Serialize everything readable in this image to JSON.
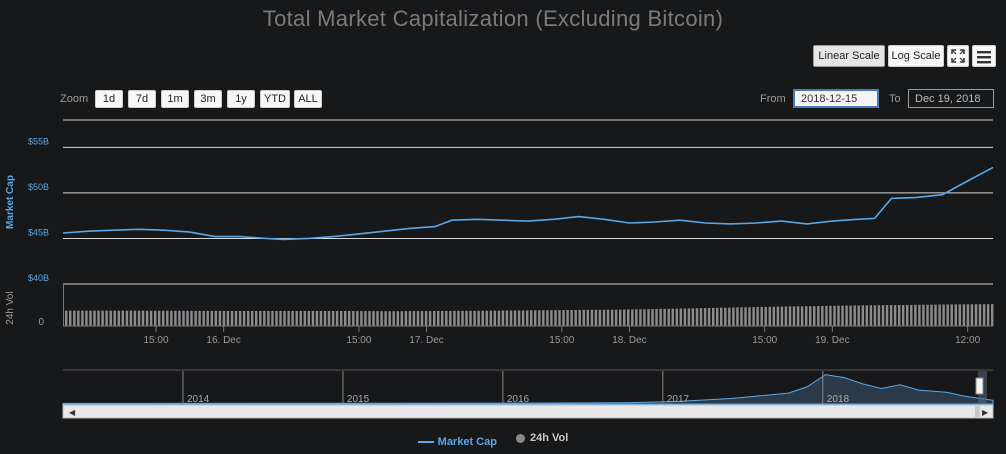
{
  "title": "Total Market Capitalization (Excluding Bitcoin)",
  "toolbar": {
    "linear_scale": "Linear Scale",
    "log_scale": "Log Scale",
    "fullscreen_icon": "fullscreen-icon",
    "menu_icon": "hamburger-menu-icon"
  },
  "zoom": {
    "label": "Zoom",
    "buttons": [
      "1d",
      "7d",
      "1m",
      "3m",
      "1y",
      "YTD",
      "ALL"
    ]
  },
  "range": {
    "from_label": "From",
    "from_value": "2018-12-15",
    "to_label": "To",
    "to_value": "Dec 19, 2018"
  },
  "colors": {
    "line": "#5aa7e8",
    "volume": "#8c8c8c",
    "background": "#17181a",
    "grid": "#d8d8d8"
  },
  "legend": {
    "market_cap": "Market Cap",
    "volume": "24h Vol"
  },
  "chart_data": {
    "type": "line",
    "y_axis_title": "Market Cap",
    "y_ticks": [
      "$40B",
      "$45B",
      "$50B",
      "$55B"
    ],
    "ylim": [
      40,
      58
    ],
    "volume_axis_title": "24h Vol",
    "volume_ticks": [
      "0"
    ],
    "x_ticks": [
      "15:00",
      "16. Dec",
      "15:00",
      "17. Dec",
      "15:00",
      "18. Dec",
      "15:00",
      "19. Dec",
      "12:00"
    ],
    "x_range_hours": [
      0,
      110
    ],
    "series": [
      {
        "name": "Market Cap",
        "unit": "$B",
        "points": [
          [
            0,
            45.6
          ],
          [
            3,
            45.8
          ],
          [
            6,
            45.9
          ],
          [
            9,
            46.0
          ],
          [
            12,
            45.9
          ],
          [
            15,
            45.7
          ],
          [
            18,
            45.2
          ],
          [
            21,
            45.2
          ],
          [
            24,
            45.0
          ],
          [
            26,
            44.9
          ],
          [
            29,
            45.0
          ],
          [
            32,
            45.2
          ],
          [
            35,
            45.5
          ],
          [
            38,
            45.8
          ],
          [
            41,
            46.1
          ],
          [
            44,
            46.3
          ],
          [
            46,
            47.0
          ],
          [
            49,
            47.1
          ],
          [
            52,
            47.0
          ],
          [
            55,
            46.9
          ],
          [
            58,
            47.1
          ],
          [
            61,
            47.4
          ],
          [
            64,
            47.1
          ],
          [
            67,
            46.7
          ],
          [
            70,
            46.8
          ],
          [
            73,
            47.0
          ],
          [
            76,
            46.7
          ],
          [
            79,
            46.6
          ],
          [
            82,
            46.7
          ],
          [
            85,
            46.9
          ],
          [
            88,
            46.6
          ],
          [
            91,
            46.9
          ],
          [
            94,
            47.1
          ],
          [
            96,
            47.2
          ],
          [
            98,
            49.4
          ],
          [
            101,
            49.5
          ],
          [
            104,
            49.8
          ],
          [
            107,
            51.3
          ],
          [
            110,
            52.8
          ]
        ]
      },
      {
        "name": "24h Vol",
        "unit": "relative",
        "values_note": "",
        "levels": [
          0.72,
          0.72,
          0.71,
          0.7,
          0.7,
          0.7,
          0.69,
          0.7,
          0.72,
          0.74,
          0.76,
          0.8,
          0.85,
          0.9,
          0.94,
          0.97,
          1.0,
          1.02
        ]
      }
    ]
  },
  "navigator": {
    "year_labels": [
      "2014",
      "2015",
      "2016",
      "2017",
      "2018"
    ],
    "overview_points": [
      [
        0.0,
        0.02
      ],
      [
        0.5,
        0.03
      ],
      [
        0.6,
        0.04
      ],
      [
        0.66,
        0.08
      ],
      [
        0.72,
        0.18
      ],
      [
        0.78,
        0.35
      ],
      [
        0.8,
        0.55
      ],
      [
        0.82,
        0.95
      ],
      [
        0.84,
        0.85
      ],
      [
        0.86,
        0.65
      ],
      [
        0.88,
        0.5
      ],
      [
        0.9,
        0.62
      ],
      [
        0.92,
        0.45
      ],
      [
        0.95,
        0.38
      ],
      [
        0.97,
        0.25
      ],
      [
        1.0,
        0.12
      ]
    ]
  }
}
